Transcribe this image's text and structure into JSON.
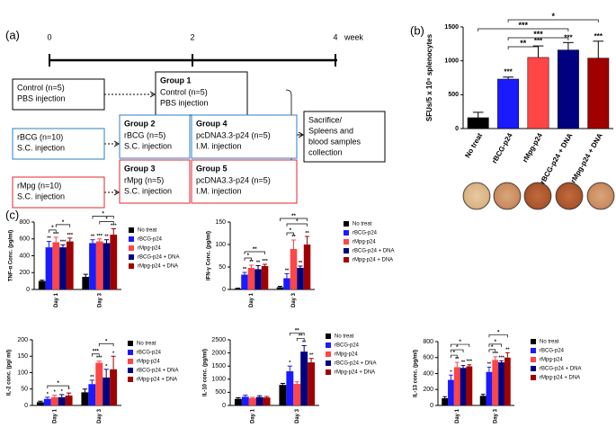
{
  "panel_labels": {
    "a": "(a)",
    "b": "(b)",
    "c": "(c)"
  },
  "diagram": {
    "timeline": {
      "ticks": [
        "0",
        "2",
        "4"
      ],
      "unit": "week"
    },
    "boxes": [
      {
        "lines": [
          "Control (n=5)",
          "PBS injection"
        ],
        "color": "#000000"
      },
      {
        "title": "Group 1",
        "lines": [
          "Control (n=5)",
          "PBS injection"
        ],
        "color": "#000000"
      },
      {
        "lines": [
          "rBCG (n=10)",
          "S.C. injection"
        ],
        "color": "#2a7fc8"
      },
      {
        "title": "Group 2",
        "lines": [
          "rBCG (n=5)",
          "S.C. injection"
        ],
        "color": "#2a7fc8"
      },
      {
        "title": "Group 4",
        "lines": [
          "pcDNA3.3-p24 (n=5)",
          "I.M. injection"
        ],
        "color": "#2a7fc8"
      },
      {
        "lines": [
          "rMpg (n=10)",
          "S.C. injection"
        ],
        "color": "#e0262c"
      },
      {
        "title": "Group 3",
        "lines": [
          "rMpg (n=5)",
          "S.C. injection"
        ],
        "color": "#e0262c"
      },
      {
        "title": "Group 5",
        "lines": [
          "pcDNA3.3-p24 (n=5)",
          "I.M. injection"
        ],
        "color": "#e0262c"
      },
      {
        "lines": [
          "Sacrifice/",
          "Spleens and",
          "blood samples",
          "collection"
        ],
        "color": "#000000"
      }
    ]
  },
  "chart_data": [
    {
      "type": "bar",
      "ylabel": "SFUs/5 x 10⁵ splenocytes",
      "categories": [
        "No treat",
        "rBCG-p24",
        "rMpg-p24",
        "rBCG-p24 + DNA",
        "rMpg-p24 + DNA"
      ],
      "values": [
        160,
        730,
        1050,
        1160,
        1040
      ],
      "errors": [
        80,
        30,
        170,
        110,
        250
      ],
      "colors": [
        "#000000",
        "#1a1aff",
        "#ff4545",
        "#000080",
        "#a00000"
      ],
      "stars": [
        null,
        "***",
        "***",
        "***",
        "***"
      ],
      "brackets": [
        {
          "from": 1,
          "to": 2,
          "label": "**"
        },
        {
          "from": 1,
          "to": 3,
          "label": "***"
        },
        {
          "from": 0,
          "to": 3,
          "label": "***"
        },
        {
          "from": 1,
          "to": 4,
          "label": "*"
        }
      ],
      "ylim": [
        0,
        1500
      ],
      "yticks": [
        0,
        500,
        1000,
        1500
      ]
    },
    {
      "type": "grouped_bar",
      "ylabel": "TNF-α Conc. (pg/ml)",
      "categories": [
        "Day 1",
        "Day 3"
      ],
      "series": [
        {
          "name": "No treat",
          "color": "#000000",
          "values": [
            100,
            150
          ],
          "errors": [
            10,
            30
          ],
          "stars": [
            null,
            null
          ]
        },
        {
          "name": "rBCG-p24",
          "color": "#1a1aff",
          "values": [
            500,
            550
          ],
          "errors": [
            70,
            40
          ],
          "stars": [
            "**",
            "**"
          ]
        },
        {
          "name": "rMpg-p24",
          "color": "#ff4545",
          "values": [
            560,
            570
          ],
          "errors": [
            60,
            30
          ],
          "stars": [
            "***",
            "***"
          ]
        },
        {
          "name": "rBCG-p24 + DNA",
          "color": "#000080",
          "values": [
            500,
            550
          ],
          "errors": [
            30,
            40
          ],
          "stars": [
            "***",
            "**"
          ]
        },
        {
          "name": "rMpg-p24 + DNA",
          "color": "#a00000",
          "values": [
            570,
            650
          ],
          "errors": [
            40,
            70
          ],
          "stars": [
            "***",
            "***"
          ]
        }
      ],
      "brackets": [
        {
          "category": 0,
          "from": 1,
          "to": 2,
          "label": "*"
        },
        {
          "category": 0,
          "from": 2,
          "to": 4,
          "label": "*"
        },
        {
          "category": 1,
          "from": 2,
          "to": 4,
          "label": "*"
        },
        {
          "category": 1,
          "from": 1,
          "to": 4,
          "label": "*"
        }
      ],
      "ylim": [
        0,
        800
      ],
      "yticks": [
        0,
        200,
        400,
        600,
        800
      ]
    },
    {
      "type": "grouped_bar",
      "ylabel": "IFN-γ Conc. (pg/ml)",
      "categories": [
        "Day 1",
        "Day 3"
      ],
      "series": [
        {
          "name": "No treat",
          "color": "#000000",
          "values": [
            2,
            5
          ],
          "errors": [
            1,
            2
          ],
          "stars": [
            null,
            null
          ]
        },
        {
          "name": "rBCG-p24",
          "color": "#1a1aff",
          "values": [
            33,
            25
          ],
          "errors": [
            5,
            10
          ],
          "stars": [
            "**",
            "**"
          ]
        },
        {
          "name": "rMpg-p24",
          "color": "#ff4545",
          "values": [
            48,
            90
          ],
          "errors": [
            6,
            20
          ],
          "stars": [
            "**",
            "**"
          ]
        },
        {
          "name": "rBCG-p24 + DNA",
          "color": "#000080",
          "values": [
            45,
            48
          ],
          "errors": [
            8,
            4
          ],
          "stars": [
            "**",
            "**"
          ]
        },
        {
          "name": "rMpg-p24 + DNA",
          "color": "#a00000",
          "values": [
            52,
            100
          ],
          "errors": [
            4,
            18
          ],
          "stars": [
            "***",
            "**"
          ]
        }
      ],
      "brackets": [
        {
          "category": 0,
          "from": 1,
          "to": 2,
          "label": "*"
        },
        {
          "category": 0,
          "from": 1,
          "to": 4,
          "label": "**"
        },
        {
          "category": 1,
          "from": 1,
          "to": 2,
          "label": "*"
        },
        {
          "category": 1,
          "from": 1,
          "to": 4,
          "label": "*"
        },
        {
          "category": 1,
          "from": 0,
          "to": 4,
          "label": "**"
        }
      ],
      "ylim": [
        0,
        150
      ],
      "yticks": [
        0,
        50,
        100,
        150
      ]
    },
    {
      "type": "grouped_bar",
      "ylabel": "IL-2 conc. (pg/ ml)",
      "categories": [
        "Day 1",
        "Day 3"
      ],
      "series": [
        {
          "name": "No treat",
          "color": "#000000",
          "values": [
            10,
            40
          ],
          "errors": [
            3,
            10
          ],
          "stars": [
            null,
            null
          ]
        },
        {
          "name": "rBCG-p24",
          "color": "#1a1aff",
          "values": [
            20,
            65
          ],
          "errors": [
            5,
            12
          ],
          "stars": [
            "*",
            "**"
          ]
        },
        {
          "name": "rMpg-p24",
          "color": "#ff4545",
          "values": [
            25,
            130
          ],
          "errors": [
            6,
            5
          ],
          "stars": [
            "*",
            "***"
          ]
        },
        {
          "name": "rBCG-p24 + DNA",
          "color": "#000080",
          "values": [
            25,
            85
          ],
          "errors": [
            8,
            25
          ],
          "stars": [
            "*",
            "*"
          ]
        },
        {
          "name": "rMpg-p24 + DNA",
          "color": "#a00000",
          "values": [
            30,
            110
          ],
          "errors": [
            8,
            40
          ],
          "stars": [
            "*",
            "*"
          ]
        }
      ],
      "brackets": [
        {
          "category": 0,
          "from": 1,
          "to": 4,
          "label": "*"
        },
        {
          "category": 1,
          "from": 1,
          "to": 2,
          "label": "***"
        },
        {
          "category": 1,
          "from": 2,
          "to": 4,
          "label": "*"
        }
      ],
      "ylim": [
        0,
        200
      ],
      "yticks": [
        0,
        50,
        100,
        150,
        200
      ]
    },
    {
      "type": "grouped_bar",
      "ylabel": "IL-10 conc. (pg/ml)",
      "categories": [
        "Day 1",
        "Day 3"
      ],
      "series": [
        {
          "name": "No treat",
          "color": "#000000",
          "values": [
            250,
            780
          ],
          "errors": [
            40,
            60
          ],
          "stars": [
            null,
            null
          ]
        },
        {
          "name": "rBCG-p24",
          "color": "#1a1aff",
          "values": [
            330,
            1300
          ],
          "errors": [
            60,
            200
          ],
          "stars": [
            null,
            "*"
          ]
        },
        {
          "name": "rMpg-p24",
          "color": "#ff4545",
          "values": [
            280,
            820
          ],
          "errors": [
            30,
            80
          ],
          "stars": [
            null,
            null
          ]
        },
        {
          "name": "rBCG-p24 + DNA",
          "color": "#000080",
          "values": [
            320,
            2050
          ],
          "errors": [
            50,
            230
          ],
          "stars": [
            null,
            "**"
          ]
        },
        {
          "name": "rMpg-p24 + DNA",
          "color": "#a00000",
          "values": [
            300,
            1640
          ],
          "errors": [
            40,
            150
          ],
          "stars": [
            null,
            "**"
          ]
        }
      ],
      "brackets": [
        {
          "category": 1,
          "from": 2,
          "to": 3,
          "label": "**"
        },
        {
          "category": 1,
          "from": 1,
          "to": 3,
          "label": "**"
        }
      ],
      "ylim": [
        0,
        2500
      ],
      "yticks": [
        0,
        500,
        1000,
        1500,
        2000,
        2500
      ]
    },
    {
      "type": "grouped_bar",
      "ylabel": "IL-13 conc. (pg/ml)",
      "categories": [
        "Day 1",
        "Day 3"
      ],
      "series": [
        {
          "name": "No treat",
          "color": "#000000",
          "values": [
            90,
            120
          ],
          "errors": [
            20,
            20
          ],
          "stars": [
            null,
            null
          ]
        },
        {
          "name": "rBCG-p24",
          "color": "#1a1aff",
          "values": [
            320,
            420
          ],
          "errors": [
            60,
            60
          ],
          "stars": [
            "*",
            "**"
          ]
        },
        {
          "name": "rMpg-p24",
          "color": "#ff4545",
          "values": [
            480,
            570
          ],
          "errors": [
            60,
            40
          ],
          "stars": [
            "**",
            "***"
          ]
        },
        {
          "name": "rBCG-p24 + DNA",
          "color": "#000080",
          "values": [
            470,
            540
          ],
          "errors": [
            30,
            20
          ],
          "stars": [
            "**",
            "***"
          ]
        },
        {
          "name": "rMpg-p24 + DNA",
          "color": "#a00000",
          "values": [
            490,
            600
          ],
          "errors": [
            20,
            60
          ],
          "stars": [
            "***",
            "**"
          ]
        }
      ],
      "brackets": [
        {
          "category": 0,
          "from": 1,
          "to": 2,
          "label": "*"
        },
        {
          "category": 0,
          "from": 1,
          "to": 3,
          "label": "*"
        },
        {
          "category": 0,
          "from": 1,
          "to": 4,
          "label": "*"
        },
        {
          "category": 1,
          "from": 1,
          "to": 2,
          "label": "*"
        },
        {
          "category": 1,
          "from": 1,
          "to": 3,
          "label": "*"
        },
        {
          "category": 1,
          "from": 1,
          "to": 4,
          "label": "*"
        }
      ],
      "ylim": [
        0,
        800
      ],
      "yticks": [
        0,
        200,
        400,
        600,
        800
      ]
    }
  ]
}
